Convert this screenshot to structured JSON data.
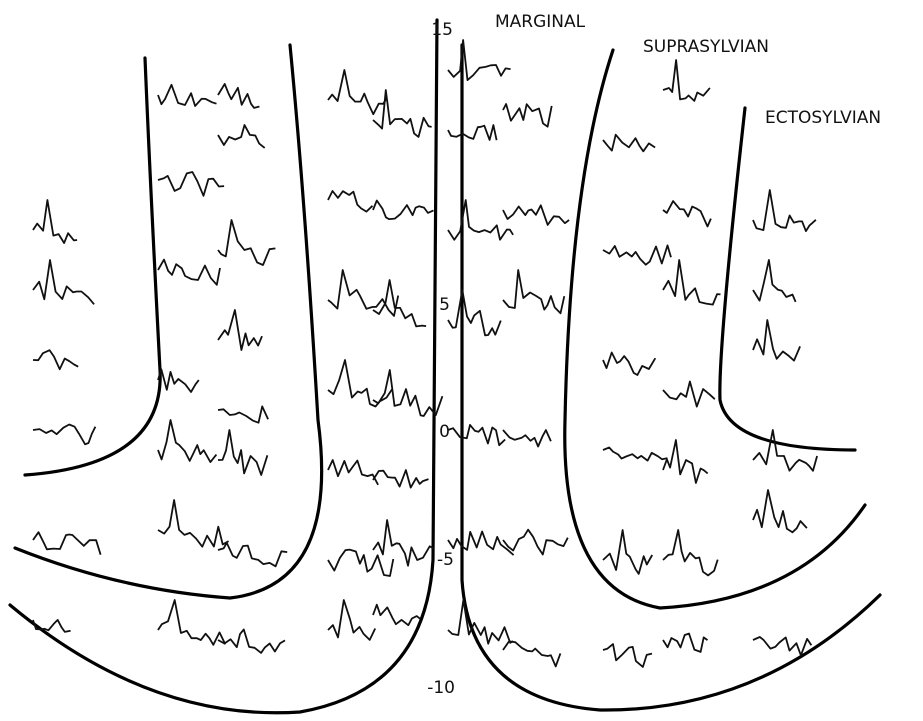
{
  "labels": {
    "marginal": "MARGINAL",
    "suprasylvian": "SUPRASYLVIAN",
    "ectosylvian": "ECTOSYLVIAN"
  },
  "scale": {
    "ticks": [
      "15",
      "5",
      "0",
      "-5",
      "-10"
    ]
  }
}
